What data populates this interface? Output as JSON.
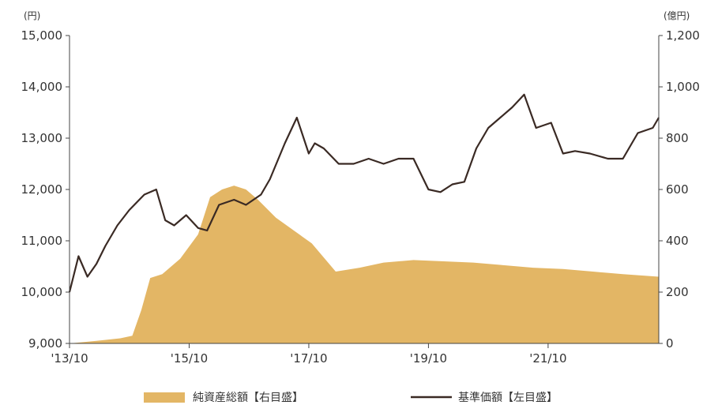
{
  "chart_data": {
    "type": "area+line",
    "left_axis": {
      "unit": "(円)",
      "ylim": [
        9000,
        15000
      ],
      "ticks": [
        "15,000",
        "14,000",
        "13,000",
        "12,000",
        "11,000",
        "10,000",
        "9,000"
      ],
      "tick_values": [
        15000,
        14000,
        13000,
        12000,
        11000,
        10000,
        9000
      ]
    },
    "right_axis": {
      "unit": "(億円)",
      "ylim": [
        0,
        1200
      ],
      "ticks": [
        "1,200",
        "1,000",
        "800",
        "600",
        "400",
        "200",
        "0"
      ],
      "tick_values": [
        1200,
        1000,
        800,
        600,
        400,
        200,
        0
      ]
    },
    "x_axis": {
      "labels": [
        "'13/10",
        "'15/10",
        "'17/10",
        "'19/10",
        "'21/10"
      ],
      "label_dates": [
        2013.75,
        2015.75,
        2017.75,
        2019.75,
        2021.75
      ],
      "xlim": [
        2013.75,
        2023.6
      ]
    },
    "series": [
      {
        "name": "純資産総額【右目盛】",
        "kind": "area",
        "axis": "right",
        "color": "#e3b665",
        "x": [
          2013.75,
          2014.2,
          2014.6,
          2014.8,
          2014.95,
          2015.1,
          2015.3,
          2015.6,
          2015.9,
          2016.1,
          2016.3,
          2016.5,
          2016.7,
          2016.9,
          2017.2,
          2017.5,
          2017.8,
          2018.2,
          2018.6,
          2019.0,
          2019.5,
          2020.0,
          2020.5,
          2021.0,
          2021.5,
          2022.0,
          2022.5,
          2023.0,
          2023.6
        ],
        "values": [
          0,
          10,
          20,
          30,
          130,
          255,
          270,
          330,
          425,
          570,
          600,
          615,
          600,
          560,
          490,
          440,
          390,
          280,
          295,
          315,
          325,
          320,
          315,
          305,
          295,
          290,
          280,
          270,
          260
        ]
      },
      {
        "name": "基準価額【左目盛】",
        "kind": "line",
        "axis": "left",
        "color": "#3a2a24",
        "x": [
          2013.75,
          2013.9,
          2014.05,
          2014.2,
          2014.35,
          2014.55,
          2014.75,
          2015.0,
          2015.2,
          2015.35,
          2015.5,
          2015.7,
          2015.9,
          2016.05,
          2016.25,
          2016.5,
          2016.7,
          2016.95,
          2017.1,
          2017.35,
          2017.55,
          2017.75,
          2017.85,
          2018.0,
          2018.25,
          2018.5,
          2018.75,
          2019.0,
          2019.25,
          2019.5,
          2019.75,
          2019.95,
          2020.15,
          2020.35,
          2020.55,
          2020.75,
          2020.95,
          2021.15,
          2021.35,
          2021.55,
          2021.8,
          2022.0,
          2022.2,
          2022.45,
          2022.75,
          2023.0,
          2023.25,
          2023.5,
          2023.6
        ],
        "values": [
          10000,
          10700,
          10300,
          10550,
          10900,
          11300,
          11600,
          11900,
          12000,
          11400,
          11300,
          11500,
          11250,
          11200,
          11700,
          11800,
          11700,
          11900,
          12200,
          12900,
          13400,
          12700,
          12900,
          12800,
          12500,
          12500,
          12600,
          12500,
          12600,
          12600,
          12000,
          11950,
          12100,
          12150,
          12800,
          13200,
          13400,
          13600,
          13850,
          13200,
          13300,
          12700,
          12750,
          12700,
          12600,
          12600,
          13100,
          13200,
          13400
        ]
      }
    ]
  }
}
